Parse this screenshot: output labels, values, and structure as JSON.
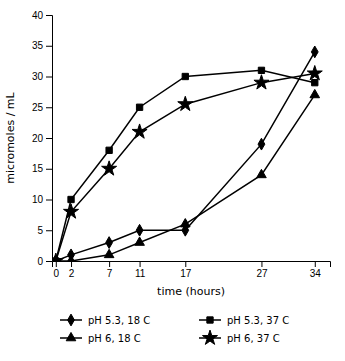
{
  "chart_data": {
    "type": "line",
    "xlabel": "time (hours)",
    "ylabel": "micromoles / mL",
    "x": [
      0,
      2,
      7,
      11,
      17,
      27,
      34
    ],
    "series": [
      {
        "name": "pH 5.3, 18 C",
        "color": "#000000",
        "marker": "diamond",
        "line_style": "solid",
        "values": [
          0,
          1,
          3,
          5,
          5,
          19,
          34
        ]
      },
      {
        "name": "pH 5.3, 37 C",
        "color": "#000000",
        "marker": "square",
        "line_style": "solid",
        "values": [
          0,
          10,
          18,
          25,
          30,
          31,
          29
        ]
      },
      {
        "name": "pH 6, 18 C",
        "color": "#000000",
        "marker": "triangle",
        "line_style": "solid",
        "values": [
          0,
          0,
          1,
          3,
          6,
          14,
          27
        ]
      },
      {
        "name": "pH 6, 37 C",
        "color": "#000000",
        "marker": "star",
        "line_style": "solid",
        "values": [
          0,
          8,
          15,
          21,
          25.5,
          29,
          30.5
        ]
      }
    ],
    "xlim": [
      -0.5,
      36
    ],
    "xticks": [
      0,
      2,
      7,
      11,
      17,
      27,
      34
    ],
    "ylim": [
      0,
      40
    ],
    "yticks": [
      0,
      5,
      10,
      15,
      20,
      25,
      30,
      35,
      40
    ],
    "grid": false,
    "legend": "bottom"
  }
}
